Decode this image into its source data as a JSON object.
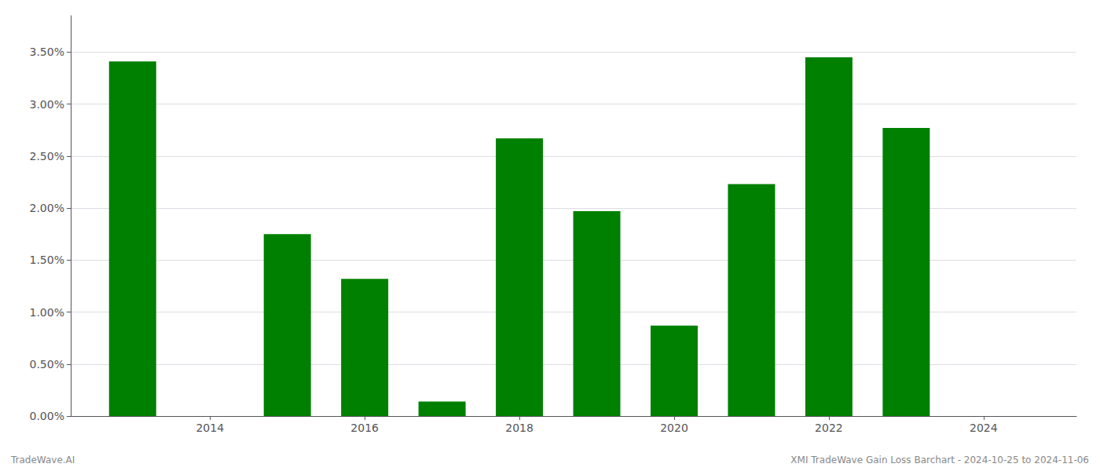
{
  "chart_data": {
    "type": "bar",
    "x": [
      2013,
      2015,
      2016,
      2017,
      2018,
      2019,
      2020,
      2021,
      2022,
      2023
    ],
    "values": [
      3.41,
      1.75,
      1.32,
      0.14,
      2.67,
      1.97,
      0.87,
      2.23,
      3.45,
      2.77
    ],
    "color": "#008000",
    "xlim": [
      2012.2,
      2025.2
    ],
    "xticks": [
      2014,
      2016,
      2018,
      2020,
      2022,
      2024
    ],
    "ylim": [
      0,
      3.85
    ],
    "yticks": [
      {
        "value": 0.0,
        "label": "0.00%"
      },
      {
        "value": 0.5,
        "label": "0.50%"
      },
      {
        "value": 1.0,
        "label": "1.00%"
      },
      {
        "value": 1.5,
        "label": "1.50%"
      },
      {
        "value": 2.0,
        "label": "2.00%"
      },
      {
        "value": 2.5,
        "label": "2.50%"
      },
      {
        "value": 3.0,
        "label": "3.00%"
      },
      {
        "value": 3.5,
        "label": "3.50%"
      }
    ],
    "grid": true,
    "annotations": [
      "TradeWave.AI",
      "XMI TradeWave Gain Loss Barchart - 2024-10-25 to 2024-11-06"
    ]
  }
}
